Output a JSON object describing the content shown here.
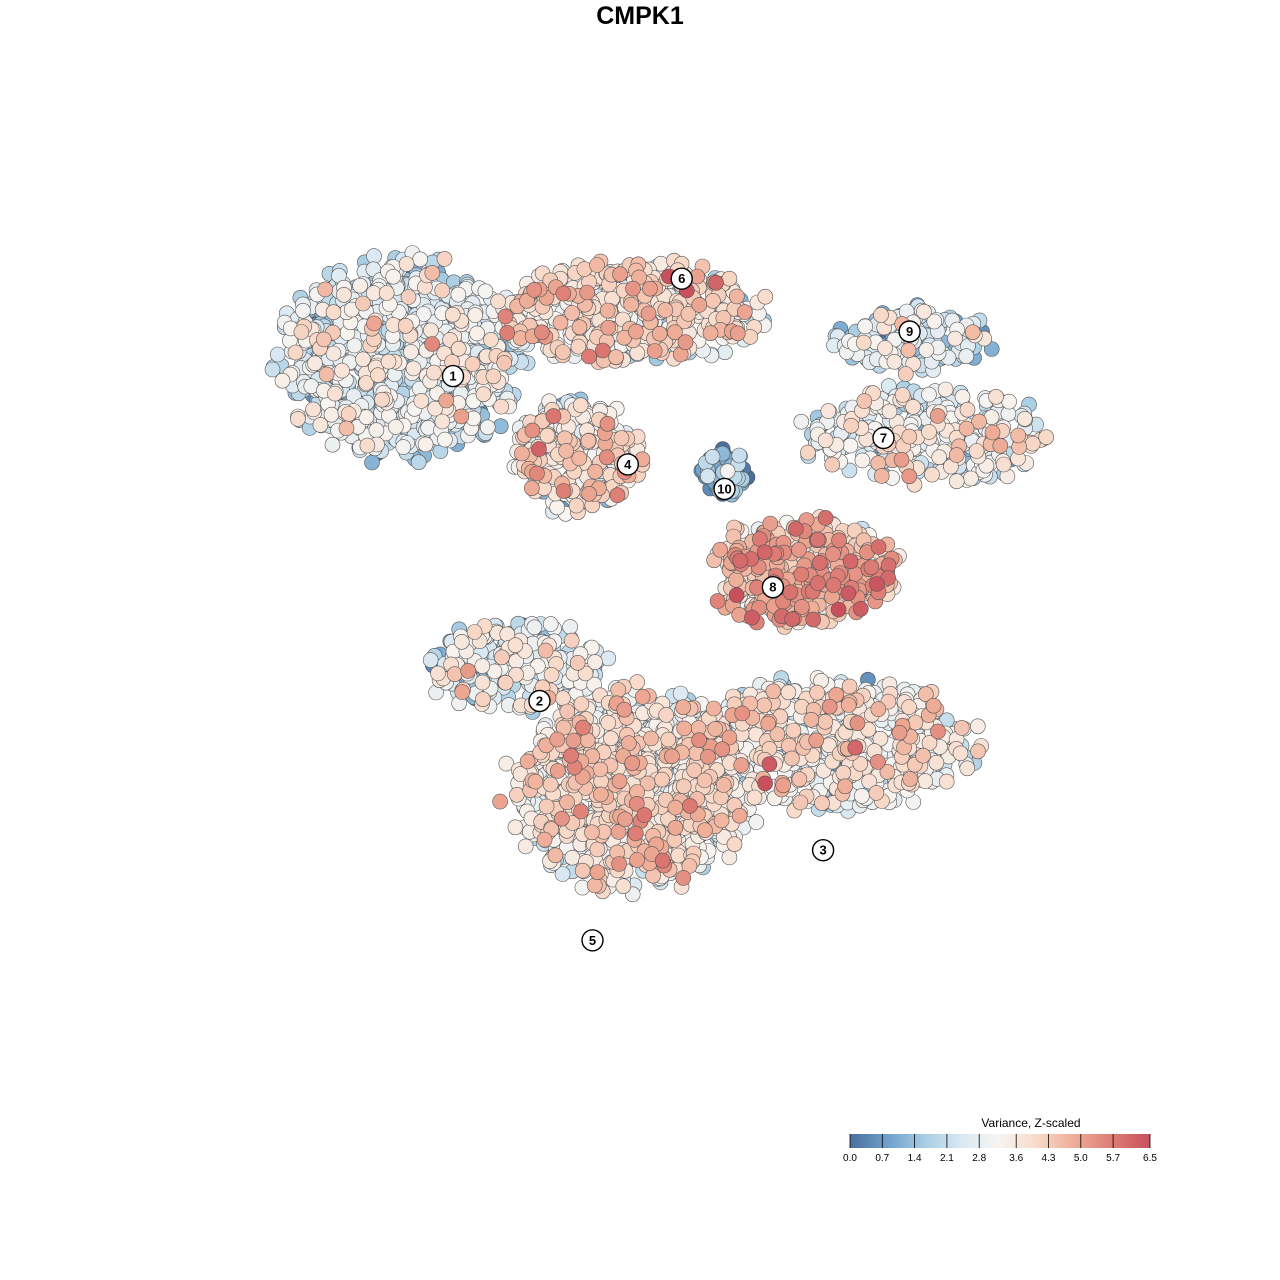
{
  "title": "CMPK1",
  "colors": {
    "scale": [
      "#4a6f9c",
      "#6fa0cc",
      "#a8cde3",
      "#dbe9f2",
      "#f7f4f1",
      "#f8d9c8",
      "#eeac96",
      "#dd7c74",
      "#c8505c"
    ],
    "point_stroke": "#555555"
  },
  "chart_data": {
    "type": "scatter",
    "title": "CMPK1",
    "xlabel": "",
    "ylabel": "",
    "grid": false,
    "xlim": [
      0,
      100
    ],
    "ylim": [
      0,
      100
    ],
    "legend": {
      "title": "Variance, Z-scaled",
      "placement": "bottom-right",
      "min": 0.0,
      "max": 6.5,
      "ticks": [
        "0.0",
        "0.7",
        "1.4",
        "2.1",
        "2.8",
        "3.6",
        "4.3",
        "5.0",
        "5.7",
        "6.5"
      ]
    },
    "clusters": [
      {
        "label": "1",
        "x": 21.5,
        "y": 81.0,
        "rx": 12.5,
        "ry": 10.5,
        "mean": 2.4,
        "density": 1.0,
        "n": 900
      },
      {
        "label": "6",
        "x": 46.0,
        "y": 86.0,
        "rx": 14.0,
        "ry": 5.5,
        "mean": 3.5,
        "density": 0.9,
        "n": 520
      },
      {
        "label": "9",
        "x": 76.5,
        "y": 83.0,
        "rx": 8.0,
        "ry": 3.5,
        "mean": 2.2,
        "density": 0.9,
        "n": 160
      },
      {
        "label": "4",
        "x": 40.5,
        "y": 70.5,
        "rx": 6.5,
        "ry": 6.0,
        "mean": 3.3,
        "density": 1.0,
        "n": 300
      },
      {
        "label": "10",
        "x": 56.5,
        "y": 68.5,
        "rx": 2.4,
        "ry": 2.7,
        "mean": 1.0,
        "density": 1.0,
        "n": 60
      },
      {
        "label": "7",
        "x": 78.0,
        "y": 72.5,
        "rx": 13.0,
        "ry": 5.0,
        "mean": 2.9,
        "density": 0.8,
        "n": 300
      },
      {
        "label": "8",
        "x": 65.0,
        "y": 57.5,
        "rx": 10.0,
        "ry": 6.0,
        "mean": 4.4,
        "density": 0.9,
        "n": 380
      },
      {
        "label": "2",
        "x": 34.0,
        "y": 47.0,
        "rx": 9.0,
        "ry": 4.8,
        "mean": 2.7,
        "density": 0.8,
        "n": 260
      },
      {
        "label": "3",
        "x": 68.0,
        "y": 38.5,
        "rx": 14.5,
        "ry": 7.0,
        "mean": 3.1,
        "density": 1.0,
        "n": 640
      },
      {
        "label": "5",
        "x": 46.5,
        "y": 33.5,
        "rx": 12.5,
        "ry": 10.5,
        "mean": 3.3,
        "density": 1.0,
        "n": 1050
      }
    ],
    "label_positions": [
      {
        "label": "1",
        "x": 27.2,
        "y": 79.0
      },
      {
        "label": "6",
        "x": 51.8,
        "y": 89.7
      },
      {
        "label": "9",
        "x": 76.3,
        "y": 83.9
      },
      {
        "label": "4",
        "x": 46.0,
        "y": 69.3
      },
      {
        "label": "10",
        "x": 56.4,
        "y": 66.6
      },
      {
        "label": "7",
        "x": 73.5,
        "y": 72.2
      },
      {
        "label": "8",
        "x": 61.6,
        "y": 55.8
      },
      {
        "label": "2",
        "x": 36.5,
        "y": 43.3
      },
      {
        "label": "3",
        "x": 67.0,
        "y": 26.9
      },
      {
        "label": "5",
        "x": 42.2,
        "y": 17.0
      }
    ]
  }
}
